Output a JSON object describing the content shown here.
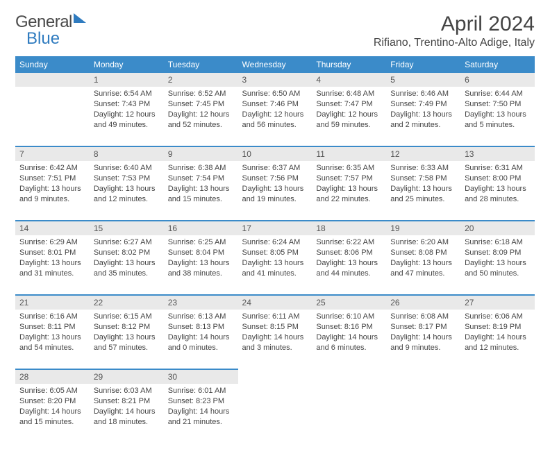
{
  "logo": {
    "part1": "General",
    "part2": "Blue"
  },
  "title": "April 2024",
  "location": "Rifiano, Trentino-Alto Adige, Italy",
  "header_bg": "#3b8bc9",
  "header_fg": "#ffffff",
  "daynum_bg": "#e9e9e9",
  "divider_color": "#3b8bc9",
  "text_color": "#444444",
  "font_family": "Arial",
  "title_fontsize": 30,
  "body_fontsize": 11,
  "weekdays": [
    "Sunday",
    "Monday",
    "Tuesday",
    "Wednesday",
    "Thursday",
    "Friday",
    "Saturday"
  ],
  "weeks": [
    [
      null,
      {
        "n": "1",
        "sunrise": "Sunrise: 6:54 AM",
        "sunset": "Sunset: 7:43 PM",
        "day1": "Daylight: 12 hours",
        "day2": "and 49 minutes."
      },
      {
        "n": "2",
        "sunrise": "Sunrise: 6:52 AM",
        "sunset": "Sunset: 7:45 PM",
        "day1": "Daylight: 12 hours",
        "day2": "and 52 minutes."
      },
      {
        "n": "3",
        "sunrise": "Sunrise: 6:50 AM",
        "sunset": "Sunset: 7:46 PM",
        "day1": "Daylight: 12 hours",
        "day2": "and 56 minutes."
      },
      {
        "n": "4",
        "sunrise": "Sunrise: 6:48 AM",
        "sunset": "Sunset: 7:47 PM",
        "day1": "Daylight: 12 hours",
        "day2": "and 59 minutes."
      },
      {
        "n": "5",
        "sunrise": "Sunrise: 6:46 AM",
        "sunset": "Sunset: 7:49 PM",
        "day1": "Daylight: 13 hours",
        "day2": "and 2 minutes."
      },
      {
        "n": "6",
        "sunrise": "Sunrise: 6:44 AM",
        "sunset": "Sunset: 7:50 PM",
        "day1": "Daylight: 13 hours",
        "day2": "and 5 minutes."
      }
    ],
    [
      {
        "n": "7",
        "sunrise": "Sunrise: 6:42 AM",
        "sunset": "Sunset: 7:51 PM",
        "day1": "Daylight: 13 hours",
        "day2": "and 9 minutes."
      },
      {
        "n": "8",
        "sunrise": "Sunrise: 6:40 AM",
        "sunset": "Sunset: 7:53 PM",
        "day1": "Daylight: 13 hours",
        "day2": "and 12 minutes."
      },
      {
        "n": "9",
        "sunrise": "Sunrise: 6:38 AM",
        "sunset": "Sunset: 7:54 PM",
        "day1": "Daylight: 13 hours",
        "day2": "and 15 minutes."
      },
      {
        "n": "10",
        "sunrise": "Sunrise: 6:37 AM",
        "sunset": "Sunset: 7:56 PM",
        "day1": "Daylight: 13 hours",
        "day2": "and 19 minutes."
      },
      {
        "n": "11",
        "sunrise": "Sunrise: 6:35 AM",
        "sunset": "Sunset: 7:57 PM",
        "day1": "Daylight: 13 hours",
        "day2": "and 22 minutes."
      },
      {
        "n": "12",
        "sunrise": "Sunrise: 6:33 AM",
        "sunset": "Sunset: 7:58 PM",
        "day1": "Daylight: 13 hours",
        "day2": "and 25 minutes."
      },
      {
        "n": "13",
        "sunrise": "Sunrise: 6:31 AM",
        "sunset": "Sunset: 8:00 PM",
        "day1": "Daylight: 13 hours",
        "day2": "and 28 minutes."
      }
    ],
    [
      {
        "n": "14",
        "sunrise": "Sunrise: 6:29 AM",
        "sunset": "Sunset: 8:01 PM",
        "day1": "Daylight: 13 hours",
        "day2": "and 31 minutes."
      },
      {
        "n": "15",
        "sunrise": "Sunrise: 6:27 AM",
        "sunset": "Sunset: 8:02 PM",
        "day1": "Daylight: 13 hours",
        "day2": "and 35 minutes."
      },
      {
        "n": "16",
        "sunrise": "Sunrise: 6:25 AM",
        "sunset": "Sunset: 8:04 PM",
        "day1": "Daylight: 13 hours",
        "day2": "and 38 minutes."
      },
      {
        "n": "17",
        "sunrise": "Sunrise: 6:24 AM",
        "sunset": "Sunset: 8:05 PM",
        "day1": "Daylight: 13 hours",
        "day2": "and 41 minutes."
      },
      {
        "n": "18",
        "sunrise": "Sunrise: 6:22 AM",
        "sunset": "Sunset: 8:06 PM",
        "day1": "Daylight: 13 hours",
        "day2": "and 44 minutes."
      },
      {
        "n": "19",
        "sunrise": "Sunrise: 6:20 AM",
        "sunset": "Sunset: 8:08 PM",
        "day1": "Daylight: 13 hours",
        "day2": "and 47 minutes."
      },
      {
        "n": "20",
        "sunrise": "Sunrise: 6:18 AM",
        "sunset": "Sunset: 8:09 PM",
        "day1": "Daylight: 13 hours",
        "day2": "and 50 minutes."
      }
    ],
    [
      {
        "n": "21",
        "sunrise": "Sunrise: 6:16 AM",
        "sunset": "Sunset: 8:11 PM",
        "day1": "Daylight: 13 hours",
        "day2": "and 54 minutes."
      },
      {
        "n": "22",
        "sunrise": "Sunrise: 6:15 AM",
        "sunset": "Sunset: 8:12 PM",
        "day1": "Daylight: 13 hours",
        "day2": "and 57 minutes."
      },
      {
        "n": "23",
        "sunrise": "Sunrise: 6:13 AM",
        "sunset": "Sunset: 8:13 PM",
        "day1": "Daylight: 14 hours",
        "day2": "and 0 minutes."
      },
      {
        "n": "24",
        "sunrise": "Sunrise: 6:11 AM",
        "sunset": "Sunset: 8:15 PM",
        "day1": "Daylight: 14 hours",
        "day2": "and 3 minutes."
      },
      {
        "n": "25",
        "sunrise": "Sunrise: 6:10 AM",
        "sunset": "Sunset: 8:16 PM",
        "day1": "Daylight: 14 hours",
        "day2": "and 6 minutes."
      },
      {
        "n": "26",
        "sunrise": "Sunrise: 6:08 AM",
        "sunset": "Sunset: 8:17 PM",
        "day1": "Daylight: 14 hours",
        "day2": "and 9 minutes."
      },
      {
        "n": "27",
        "sunrise": "Sunrise: 6:06 AM",
        "sunset": "Sunset: 8:19 PM",
        "day1": "Daylight: 14 hours",
        "day2": "and 12 minutes."
      }
    ],
    [
      {
        "n": "28",
        "sunrise": "Sunrise: 6:05 AM",
        "sunset": "Sunset: 8:20 PM",
        "day1": "Daylight: 14 hours",
        "day2": "and 15 minutes."
      },
      {
        "n": "29",
        "sunrise": "Sunrise: 6:03 AM",
        "sunset": "Sunset: 8:21 PM",
        "day1": "Daylight: 14 hours",
        "day2": "and 18 minutes."
      },
      {
        "n": "30",
        "sunrise": "Sunrise: 6:01 AM",
        "sunset": "Sunset: 8:23 PM",
        "day1": "Daylight: 14 hours",
        "day2": "and 21 minutes."
      },
      null,
      null,
      null,
      null
    ]
  ]
}
